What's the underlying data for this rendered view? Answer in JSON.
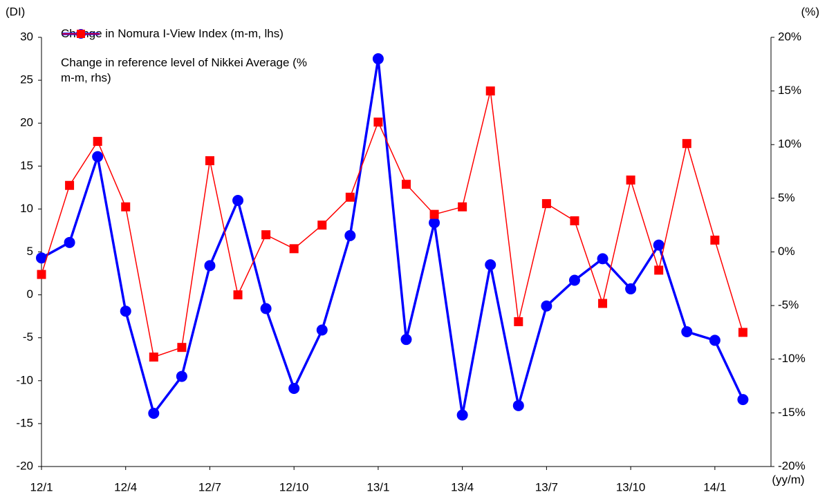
{
  "chart_data": {
    "type": "line",
    "y_label": "(DI)",
    "y2_label": "(%)",
    "x_label": "(yy/m)",
    "categories": [
      "12/1",
      null,
      null,
      "12/4",
      null,
      null,
      "12/7",
      null,
      null,
      "12/10",
      null,
      null,
      "13/1",
      null,
      null,
      "13/4",
      null,
      null,
      "13/7",
      null,
      null,
      "13/10",
      null,
      null,
      "14/1",
      null
    ],
    "series": [
      {
        "name": "Change in Nomura I-View Index (m-m, lhs)",
        "color": "#0000ff",
        "marker": "circle",
        "axis": "y",
        "values": [
          4.3,
          6.1,
          16.1,
          -1.9,
          -13.8,
          -9.5,
          3.4,
          11.0,
          -1.6,
          -10.9,
          -4.1,
          6.9,
          27.5,
          -5.2,
          8.4,
          -14.0,
          3.5,
          -12.9,
          -1.3,
          1.7,
          4.2,
          0.7,
          5.8,
          -4.3,
          -5.3,
          -12.2
        ]
      },
      {
        "name": "Change in reference level of Nikkei Average (% m-m, rhs)",
        "color": "#ff0000",
        "marker": "square",
        "axis": "y2",
        "values": [
          -2.1,
          6.2,
          10.3,
          4.2,
          -9.8,
          -8.9,
          8.5,
          -4.0,
          1.6,
          0.3,
          2.5,
          5.1,
          12.1,
          6.3,
          3.5,
          4.2,
          15.0,
          -6.5,
          4.5,
          2.9,
          -4.8,
          6.7,
          -1.7,
          10.1,
          1.1,
          -7.5
        ]
      }
    ],
    "ylim": [
      -20,
      30
    ],
    "yticks": [
      -20,
      -15,
      -10,
      -5,
      0,
      5,
      10,
      15,
      20,
      25,
      30
    ],
    "y2lim": [
      -20,
      20
    ],
    "y2ticks": [
      {
        "value": -20,
        "label": "-20%"
      },
      {
        "value": -15,
        "label": "-15%"
      },
      {
        "value": -10,
        "label": "-10%"
      },
      {
        "value": -5,
        "label": "-5%"
      },
      {
        "value": 0,
        "label": "0%"
      },
      {
        "value": 5,
        "label": "5%"
      },
      {
        "value": 10,
        "label": "10%"
      },
      {
        "value": 15,
        "label": "15%"
      },
      {
        "value": 20,
        "label": "20%"
      }
    ],
    "legend": "upper left"
  }
}
